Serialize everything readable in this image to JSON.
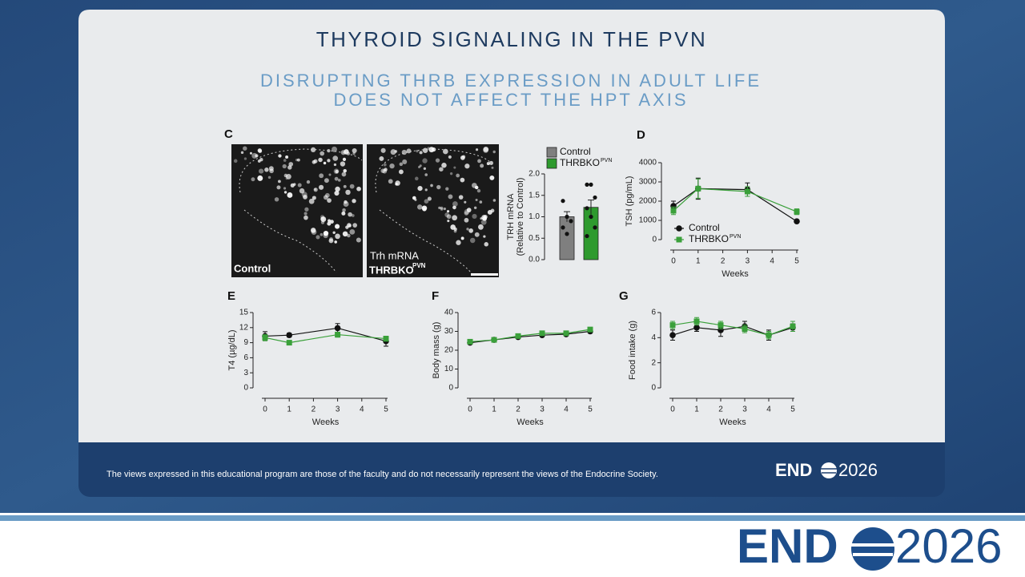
{
  "slide": {
    "title": "THYROID SIGNALING IN THE PVN",
    "subtitle_lines": [
      "DISRUPTING THRB EXPRESSION IN ADULT LIFE",
      "DOES NOT AFFECT THE HPT AXIS"
    ],
    "disclaimer": "The views expressed in this educational program are those of the faculty and do not necessarily represent the views of the Endocrine Society.",
    "logo": {
      "left": "END",
      "right": "2026"
    }
  },
  "images": {
    "panel": "C",
    "left_label": "Control",
    "right_label_top": "Trh mRNA",
    "right_label": "THRBKO",
    "right_label_sup": "PVN"
  },
  "chart_data": [
    {
      "type": "bar",
      "y_label_lines": [
        "TRH mRNA",
        "(Relative to Control)"
      ],
      "categories": [
        null
      ],
      "series": [
        {
          "name": "Control",
          "color": "#7f7f7f",
          "values": [
            1.0
          ],
          "errors": [
            0.12
          ],
          "points": [
            1.37,
            1.0,
            0.9,
            0.75,
            0.6
          ]
        },
        {
          "name": "THRBKO",
          "name_sup": "PVN",
          "color": "#2e9a2e",
          "values": [
            1.22
          ],
          "errors": [
            0.17
          ],
          "points": [
            1.75,
            1.75,
            1.45,
            1.2,
            1.0,
            0.75,
            0.55
          ]
        }
      ],
      "ylim": [
        0,
        2
      ],
      "yticks": [
        {
          "value": 0,
          "label": "0.0"
        },
        0.5,
        {
          "value": 1,
          "label": "1.0"
        },
        1.5,
        {
          "value": 2,
          "label": "2.0"
        }
      ]
    },
    {
      "type": "line",
      "panel": "D",
      "y_label": "TSH (pg/mL)",
      "x_label": "Weeks",
      "x": [
        0,
        1,
        3,
        5
      ],
      "xlim": [
        0,
        5
      ],
      "xticks": [
        0,
        1,
        2,
        3,
        4,
        5
      ],
      "ylim": [
        0,
        4000
      ],
      "yticks": [
        0,
        1000,
        2000,
        3000,
        4000
      ],
      "legend": "lower left",
      "series": [
        {
          "name": "Control",
          "color": "#111111",
          "marker": "circle",
          "values": [
            1750,
            2650,
            2600,
            950
          ],
          "errors": [
            250,
            550,
            350,
            80
          ]
        },
        {
          "name": "THRBKO",
          "name_sup": "PVN",
          "color": "#3aa03a",
          "marker": "square",
          "values": [
            1500,
            2650,
            2500,
            1450
          ],
          "errors": [
            200,
            500,
            250,
            150
          ]
        }
      ]
    },
    {
      "type": "line",
      "panel": "E",
      "y_label": "T4 (µg/dL)",
      "x_label": "Weeks",
      "x": [
        0,
        1,
        3,
        5
      ],
      "xlim": [
        0,
        5
      ],
      "xticks": [
        0,
        1,
        2,
        3,
        4,
        5
      ],
      "ylim": [
        0,
        15
      ],
      "yticks": [
        0,
        3,
        6,
        9,
        12,
        15
      ],
      "series": [
        {
          "name": "Control",
          "color": "#111111",
          "marker": "circle",
          "values": [
            10.3,
            10.5,
            11.9,
            9.3
          ],
          "errors": [
            0.9,
            0.4,
            0.9,
            1.0
          ]
        },
        {
          "name": "THRBKO",
          "name_sup": "PVN",
          "color": "#3aa03a",
          "marker": "square",
          "values": [
            10.0,
            9.0,
            10.6,
            9.8
          ],
          "errors": [
            0.6,
            0.4,
            0.5,
            0.5
          ]
        }
      ]
    },
    {
      "type": "line",
      "panel": "F",
      "y_label": "Body mass (g)",
      "x_label": "Weeks",
      "x": [
        0,
        1,
        2,
        3,
        4,
        5
      ],
      "xlim": [
        0,
        5
      ],
      "xticks": [
        0,
        1,
        2,
        3,
        4,
        5
      ],
      "ylim": [
        0,
        40
      ],
      "yticks": [
        0,
        10,
        20,
        30,
        40
      ],
      "series": [
        {
          "name": "Control",
          "color": "#111111",
          "marker": "circle",
          "values": [
            24,
            25.5,
            27,
            28,
            28.5,
            30
          ],
          "errors": [
            0.8,
            0.8,
            0.8,
            0.8,
            0.8,
            0.8
          ]
        },
        {
          "name": "THRBKO",
          "name_sup": "PVN",
          "color": "#3aa03a",
          "marker": "square",
          "values": [
            24.5,
            25.5,
            27.5,
            29,
            29,
            31
          ],
          "errors": [
            0.8,
            0.8,
            0.8,
            0.8,
            0.8,
            0.8
          ]
        }
      ]
    },
    {
      "type": "line",
      "panel": "G",
      "y_label": "Food intake (g)",
      "x_label": "Weeks",
      "x": [
        0,
        1,
        2,
        3,
        4,
        5
      ],
      "xlim": [
        0,
        5
      ],
      "xticks": [
        0,
        1,
        2,
        3,
        4,
        5
      ],
      "ylim": [
        0,
        6
      ],
      "yticks": [
        0,
        2,
        4,
        6
      ],
      "series": [
        {
          "name": "Control",
          "color": "#111111",
          "marker": "circle",
          "values": [
            4.2,
            4.8,
            4.6,
            4.9,
            4.2,
            4.8
          ],
          "errors": [
            0.4,
            0.3,
            0.5,
            0.4,
            0.4,
            0.3
          ]
        },
        {
          "name": "THRBKO",
          "name_sup": "PVN",
          "color": "#3aa03a",
          "marker": "square",
          "values": [
            5.0,
            5.3,
            5.0,
            4.7,
            4.2,
            4.9
          ],
          "errors": [
            0.3,
            0.3,
            0.3,
            0.3,
            0.3,
            0.4
          ]
        }
      ]
    }
  ]
}
